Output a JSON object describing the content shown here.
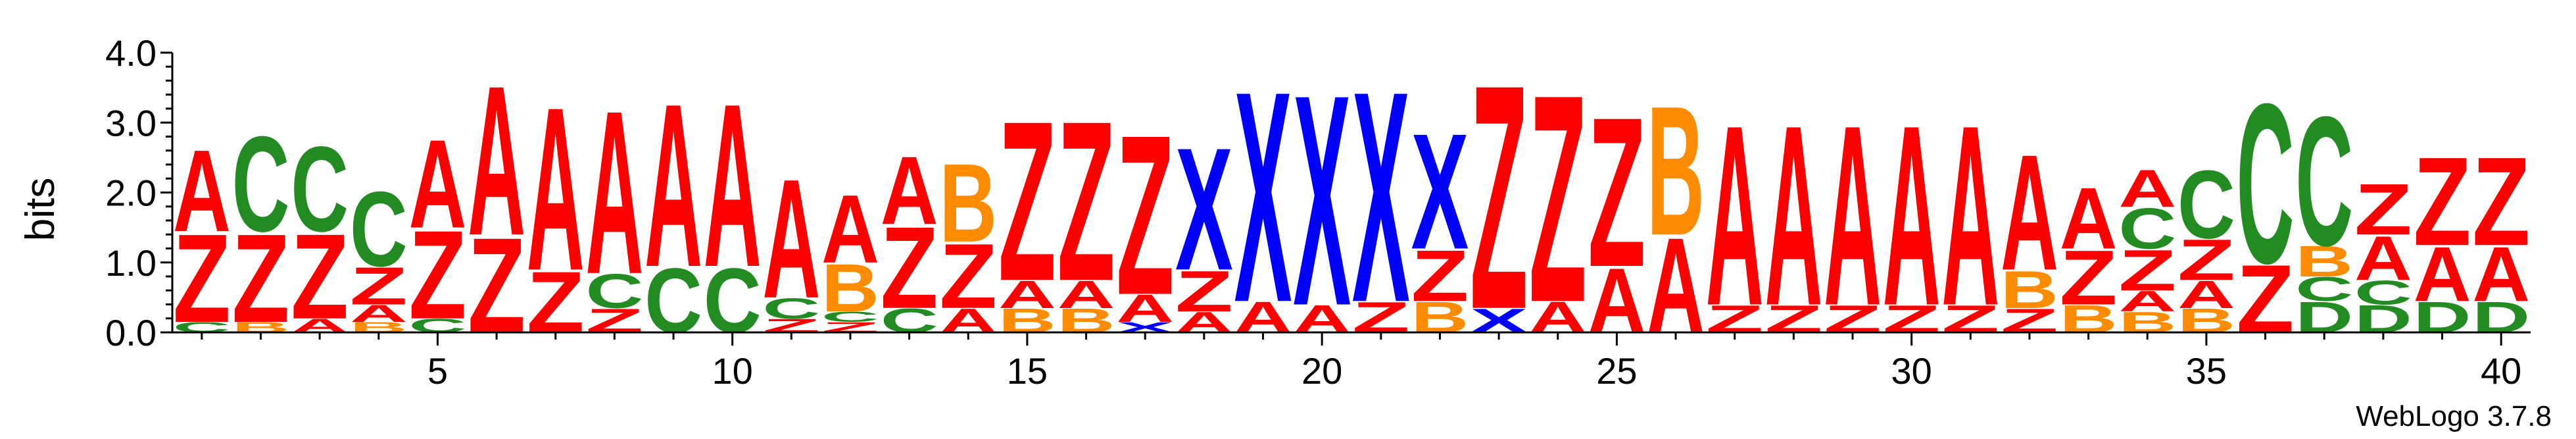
{
  "chart_data": {
    "type": "sequence-logo",
    "ylabel": "bits",
    "ylim": [
      0,
      4.0
    ],
    "yticks": [
      "0.0",
      "1.0",
      "2.0",
      "3.0",
      "4.0"
    ],
    "yticks_values": [
      0,
      1,
      2,
      3,
      4
    ],
    "xticks": [
      "5",
      "10",
      "15",
      "20",
      "25",
      "30",
      "35",
      "40"
    ],
    "xticks_values": [
      5,
      10,
      15,
      20,
      25,
      30,
      35,
      40
    ],
    "positions": 40,
    "credit": "WebLogo 3.7.8",
    "colors": {
      "A": "#ff0000",
      "Z": "#ff0000",
      "C": "#228b22",
      "D": "#228b22",
      "B": "#ff8c00",
      "X": "#0000ff"
    },
    "columns": [
      [
        [
          "C",
          0.15
        ],
        [
          "Z",
          1.3
        ],
        [
          "A",
          1.2
        ]
      ],
      [
        [
          "B",
          0.15
        ],
        [
          "Z",
          1.3
        ],
        [
          "C",
          1.4
        ]
      ],
      [
        [
          "A",
          0.2
        ],
        [
          "Z",
          1.25
        ],
        [
          "C",
          1.25
        ]
      ],
      [
        [
          "B",
          0.15
        ],
        [
          "A",
          0.25
        ],
        [
          "Z",
          0.55
        ],
        [
          "C",
          1.1
        ]
      ],
      [
        [
          "C",
          0.2
        ],
        [
          "Z",
          1.3
        ],
        [
          "A",
          1.3
        ]
      ],
      [
        [
          "Z",
          1.4
        ],
        [
          "A",
          2.2
        ]
      ],
      [
        [
          "Z",
          0.9
        ],
        [
          "A",
          2.4
        ]
      ],
      [
        [
          "Z",
          0.35
        ],
        [
          "C",
          0.5
        ],
        [
          "A",
          2.4
        ]
      ],
      [
        [
          "C",
          0.95
        ],
        [
          "A",
          2.4
        ]
      ],
      [
        [
          "C",
          0.95
        ],
        [
          "A",
          2.4
        ]
      ],
      [
        [
          "Z",
          0.2
        ],
        [
          "C",
          0.3
        ],
        [
          "A",
          1.75
        ]
      ],
      [
        [
          "Z",
          0.15
        ],
        [
          "C",
          0.15
        ],
        [
          "B",
          0.7
        ],
        [
          "A",
          1.0
        ]
      ],
      [
        [
          "C",
          0.35
        ],
        [
          "Z",
          1.2
        ],
        [
          "A",
          1.0
        ]
      ],
      [
        [
          "A",
          0.35
        ],
        [
          "Z",
          0.95
        ],
        [
          "B",
          1.15
        ]
      ],
      [
        [
          "B",
          0.35
        ],
        [
          "A",
          0.4
        ],
        [
          "Z",
          2.35
        ]
      ],
      [
        [
          "B",
          0.35
        ],
        [
          "A",
          0.4
        ],
        [
          "Z",
          2.35
        ]
      ],
      [
        [
          "X",
          0.15
        ],
        [
          "A",
          0.4
        ],
        [
          "Z",
          2.35
        ]
      ],
      [
        [
          "A",
          0.3
        ],
        [
          "Z",
          0.6
        ],
        [
          "X",
          1.8
        ]
      ],
      [
        [
          "A",
          0.45
        ],
        [
          "X",
          3.1
        ]
      ],
      [
        [
          "A",
          0.4
        ],
        [
          "X",
          3.1
        ]
      ],
      [
        [
          "Z",
          0.45
        ],
        [
          "X",
          3.1
        ]
      ],
      [
        [
          "B",
          0.45
        ],
        [
          "Z",
          0.75
        ],
        [
          "X",
          1.7
        ]
      ],
      [
        [
          "X",
          0.35
        ],
        [
          "Z",
          3.3
        ]
      ],
      [
        [
          "A",
          0.45
        ],
        [
          "Z",
          3.05
        ]
      ],
      [
        [
          "A",
          0.95
        ],
        [
          "Z",
          2.2
        ]
      ],
      [
        [
          "A",
          1.4
        ],
        [
          "B",
          1.9
        ]
      ],
      [
        [
          "Z",
          0.4
        ],
        [
          "A",
          2.65
        ]
      ],
      [
        [
          "Z",
          0.4
        ],
        [
          "A",
          2.65
        ]
      ],
      [
        [
          "Z",
          0.4
        ],
        [
          "A",
          2.65
        ]
      ],
      [
        [
          "Z",
          0.4
        ],
        [
          "A",
          2.65
        ]
      ],
      [
        [
          "Z",
          0.4
        ],
        [
          "A",
          2.65
        ]
      ],
      [
        [
          "Z",
          0.35
        ],
        [
          "B",
          0.55
        ],
        [
          "A",
          1.7
        ]
      ],
      [
        [
          "B",
          0.4
        ],
        [
          "Z",
          0.8
        ],
        [
          "A",
          0.9
        ]
      ],
      [
        [
          "B",
          0.3
        ],
        [
          "A",
          0.3
        ],
        [
          "Z",
          0.6
        ],
        [
          "C",
          0.6
        ],
        [
          "A",
          0.55
        ]
      ],
      [
        [
          "B",
          0.35
        ],
        [
          "A",
          0.4
        ],
        [
          "Z",
          0.6
        ],
        [
          "C",
          1.0
        ]
      ],
      [
        [
          "Z",
          1.0
        ],
        [
          "C",
          2.35
        ]
      ],
      [
        [
          "D",
          0.45
        ],
        [
          "C",
          0.35
        ],
        [
          "B",
          0.45
        ],
        [
          "C",
          1.9
        ]
      ],
      [
        [
          "D",
          0.4
        ],
        [
          "C",
          0.35
        ],
        [
          "A",
          0.65
        ],
        [
          "Z",
          0.75
        ]
      ],
      [
        [
          "D",
          0.45
        ],
        [
          "A",
          0.8
        ],
        [
          "Z",
          1.3
        ]
      ],
      [
        [
          "D",
          0.45
        ],
        [
          "A",
          0.8
        ],
        [
          "Z",
          1.3
        ]
      ]
    ]
  }
}
